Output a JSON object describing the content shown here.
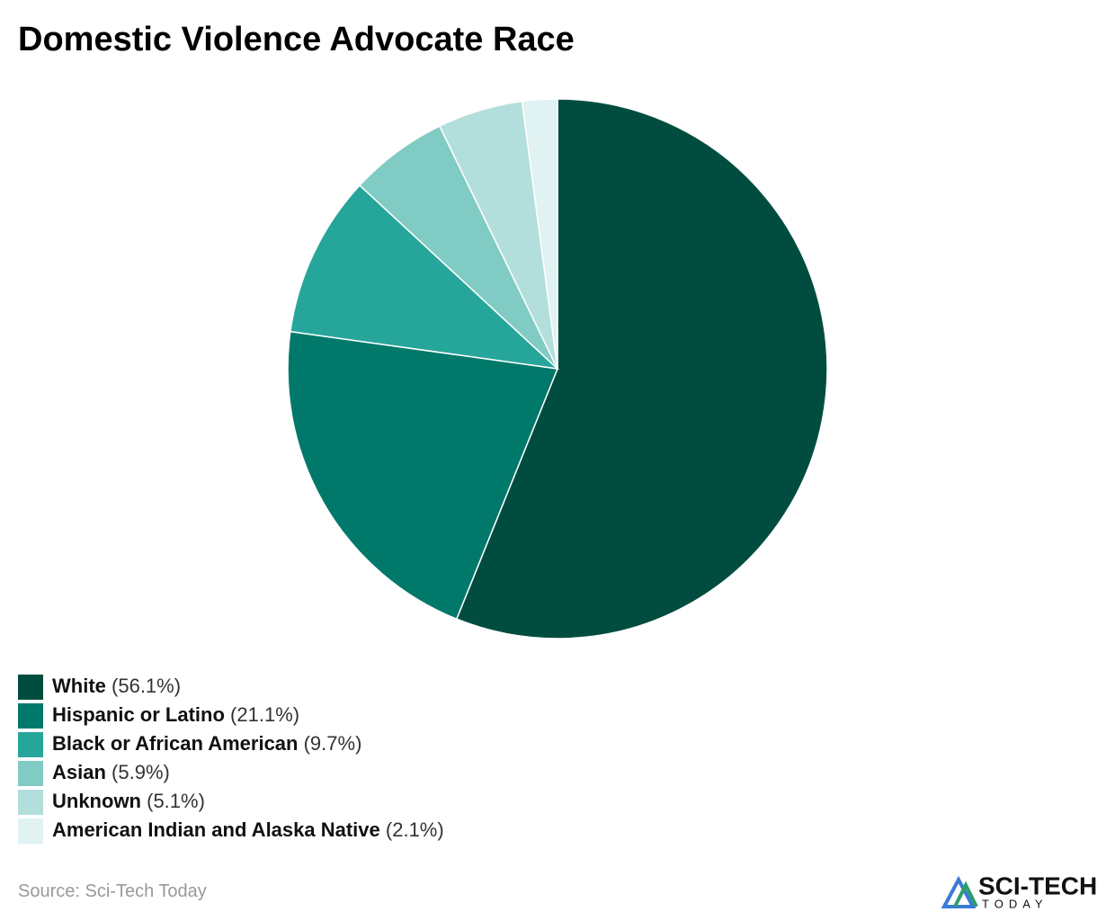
{
  "chart_data": {
    "type": "pie",
    "title": "Domestic Violence Advocate Race",
    "categories": [
      "White",
      "Hispanic or Latino",
      "Black or African American",
      "Asian",
      "Unknown",
      "American Indian and Alaska Native"
    ],
    "values": [
      56.1,
      21.1,
      9.7,
      5.9,
      5.1,
      2.1
    ],
    "value_labels": [
      "(56.1%)",
      "(21.1%)",
      "(9.7%)",
      "(5.9%)",
      "(5.1%)",
      "(2.1%)"
    ],
    "colors": [
      "#004d40",
      "#00796b",
      "#26a69a",
      "#80cbc4",
      "#b2dfdb",
      "#e0f2f1"
    ],
    "legend": "bottom-left"
  },
  "source_label": "Source:",
  "source": "Sci-Tech Today",
  "logo": {
    "name": "SCI-TECH",
    "tagline": "TODAY"
  }
}
